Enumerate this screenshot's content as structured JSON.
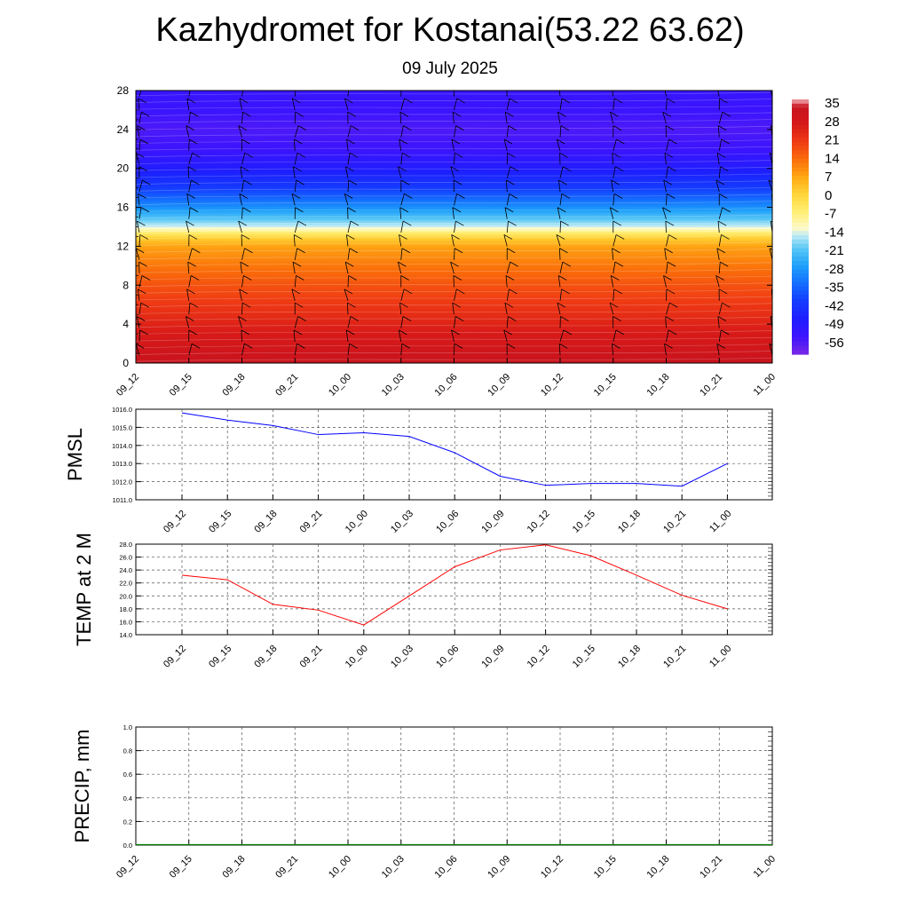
{
  "title": "Kazhydromet for Kostanai(53.22 63.62)",
  "subtitle": "09 July 2025",
  "time_labels": [
    "09_12",
    "09_15",
    "09_18",
    "09_21",
    "10_00",
    "10_03",
    "10_06",
    "10_09",
    "10_12",
    "10_15",
    "10_18",
    "10_21",
    "11_00"
  ],
  "chart_data": [
    {
      "type": "heatmap",
      "title": "",
      "xlabel": "",
      "ylabel": "",
      "categories": [
        "09_12",
        "09_15",
        "09_18",
        "09_21",
        "10_00",
        "10_03",
        "10_06",
        "10_09",
        "10_12",
        "10_15",
        "10_18",
        "10_21",
        "11_00"
      ],
      "ylim": [
        0,
        28
      ],
      "yticks": [
        0,
        4,
        8,
        12,
        16,
        20,
        24,
        28
      ],
      "colorbar": {
        "labels": [
          "35",
          "28",
          "21",
          "14",
          "7",
          "0",
          "-7",
          "-14",
          "-21",
          "-28",
          "-35",
          "-42",
          "-49",
          "-56"
        ],
        "range": [
          -63,
          38
        ]
      },
      "temperature_profile": {
        "heights": [
          0,
          2,
          4,
          6,
          8,
          10,
          12,
          13,
          14,
          16,
          18,
          20,
          22,
          24,
          26,
          28
        ],
        "values": [
          35,
          30,
          26,
          22,
          18,
          13,
          8,
          0,
          -15,
          -30,
          -42,
          -50,
          -56,
          -58,
          -56,
          -55
        ]
      },
      "wind_barbs": true,
      "colors": {
        "warm": "#d4141a",
        "neutral": "#fff5a0",
        "cold": "#1a1aff"
      }
    },
    {
      "type": "line",
      "title": "",
      "ylabel": "PMSL",
      "categories": [
        "09_12",
        "09_15",
        "09_18",
        "09_21",
        "10_00",
        "10_03",
        "10_06",
        "10_09",
        "10_12",
        "10_15",
        "10_18",
        "10_21",
        "11_00"
      ],
      "ylim": [
        1011.0,
        1016.0
      ],
      "yticks": [
        "1011.0",
        "1012.0",
        "1013.0",
        "1014.0",
        "1015.0",
        "1016.0"
      ],
      "grid": true,
      "series": [
        {
          "values": [
            1015.8,
            1015.4,
            1015.1,
            1014.6,
            1014.7,
            1014.5,
            1013.6,
            1012.3,
            1011.8,
            1011.9,
            1011.9,
            1011.75,
            1013.0
          ],
          "color": "#0000ff"
        }
      ]
    },
    {
      "type": "line",
      "title": "",
      "ylabel": "TEMP at 2 M",
      "categories": [
        "09_12",
        "09_15",
        "09_18",
        "09_21",
        "10_00",
        "10_03",
        "10_06",
        "10_09",
        "10_12",
        "10_15",
        "10_18",
        "10_21",
        "11_00"
      ],
      "ylim": [
        14.0,
        28.0
      ],
      "yticks": [
        "14.0",
        "16.0",
        "18.0",
        "20.0",
        "22.0",
        "24.0",
        "26.0",
        "28.0"
      ],
      "grid": true,
      "series": [
        {
          "values": [
            23.2,
            22.5,
            18.7,
            17.8,
            15.5,
            20.0,
            24.5,
            27.1,
            27.9,
            26.2,
            23.2,
            20.1,
            18.0
          ],
          "color": "#ff0000"
        }
      ]
    },
    {
      "type": "bar",
      "title": "",
      "ylabel": "PRECIP, mm",
      "categories": [
        "09_12",
        "09_15",
        "09_18",
        "09_21",
        "10_00",
        "10_03",
        "10_06",
        "10_09",
        "10_12",
        "10_15",
        "10_18",
        "10_21",
        "11_00"
      ],
      "ylim": [
        0.0,
        1.0
      ],
      "yticks": [
        "0.0",
        "0.2",
        "0.4",
        "0.6",
        "0.8",
        "1.0"
      ],
      "grid": true,
      "values": [
        0,
        0,
        0,
        0,
        0,
        0,
        0,
        0,
        0,
        0,
        0,
        0,
        0
      ],
      "color": "#008000"
    }
  ]
}
